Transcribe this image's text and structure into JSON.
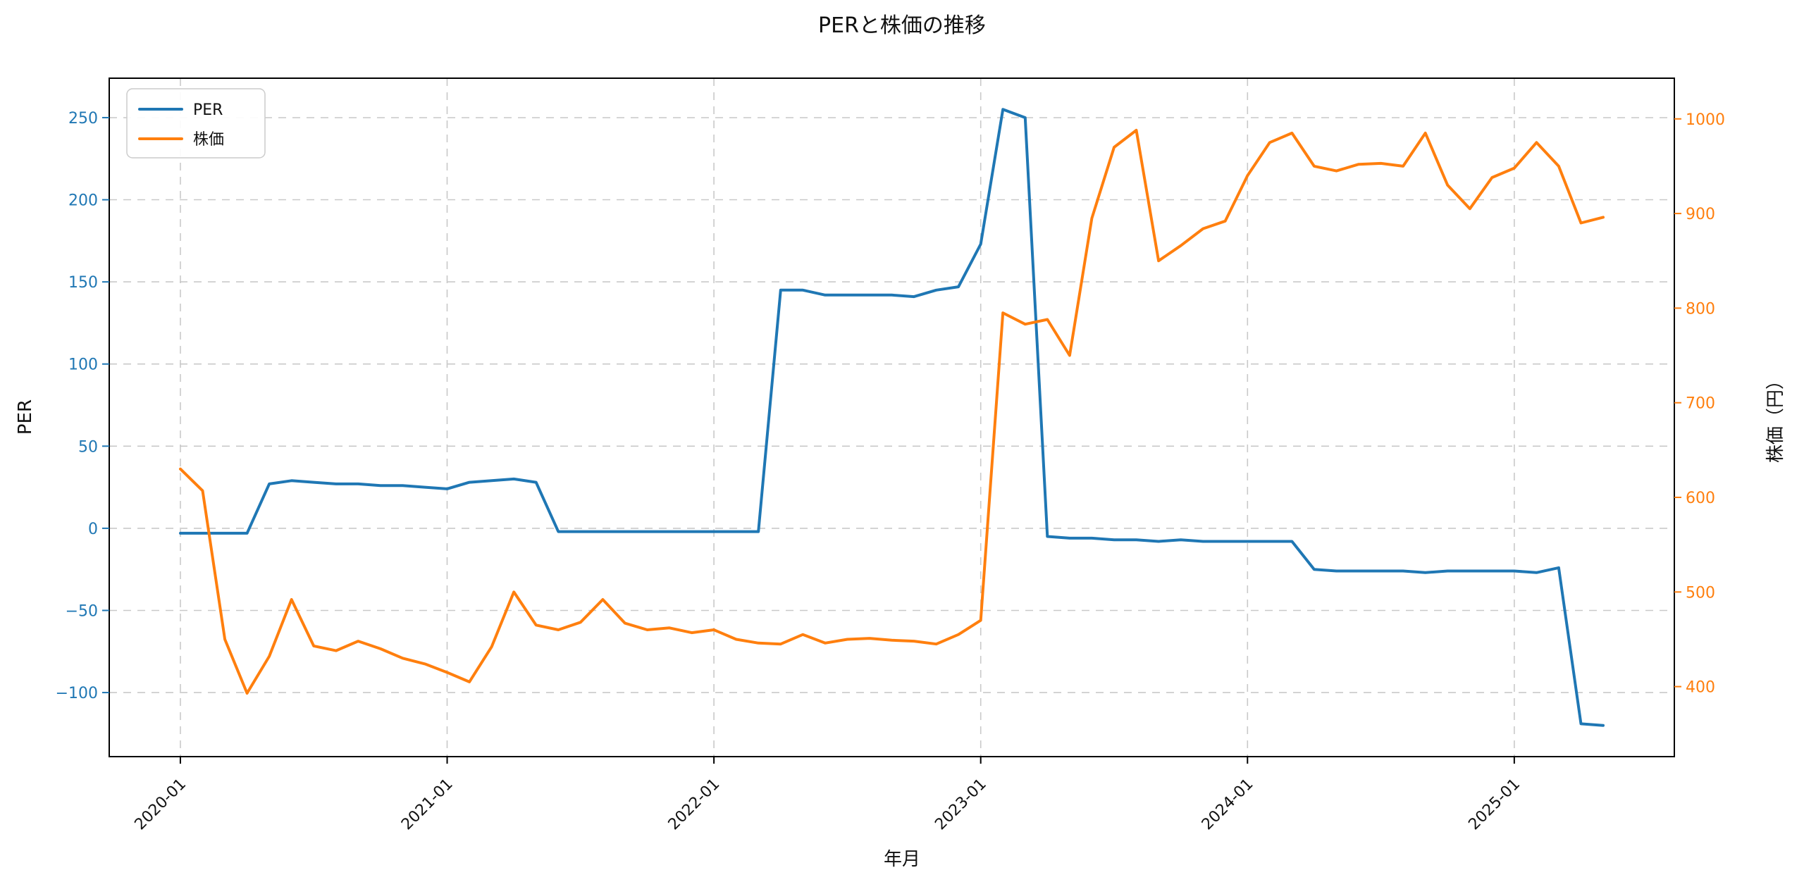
{
  "page": {
    "background": "#ffffff"
  },
  "chart_data": {
    "type": "line",
    "title": "PERと株価の推移",
    "xlabel": "年月",
    "ylabel_left": "PER",
    "ylabel_right": "株価（円）",
    "grid": {
      "on": true,
      "style": "dashed",
      "color": "#c9c9c9"
    },
    "legend": {
      "position": "upper-left",
      "entries": [
        "PER",
        "株価"
      ]
    },
    "x_categories": [
      "2020-01",
      "2020-02",
      "2020-03",
      "2020-04",
      "2020-05",
      "2020-06",
      "2020-07",
      "2020-08",
      "2020-09",
      "2020-10",
      "2020-11",
      "2020-12",
      "2021-01",
      "2021-02",
      "2021-03",
      "2021-04",
      "2021-05",
      "2021-06",
      "2021-07",
      "2021-08",
      "2021-09",
      "2021-10",
      "2021-11",
      "2021-12",
      "2022-01",
      "2022-02",
      "2022-03",
      "2022-04",
      "2022-05",
      "2022-06",
      "2022-07",
      "2022-08",
      "2022-09",
      "2022-10",
      "2022-11",
      "2022-12",
      "2023-01",
      "2023-02",
      "2023-03",
      "2023-04",
      "2023-05",
      "2023-06",
      "2023-07",
      "2023-08",
      "2023-09",
      "2023-10",
      "2023-11",
      "2023-12",
      "2024-01",
      "2024-02",
      "2024-03",
      "2024-04",
      "2024-05",
      "2024-06",
      "2024-07",
      "2024-08",
      "2024-09",
      "2024-10",
      "2024-11",
      "2024-12",
      "2025-01",
      "2025-02",
      "2025-03",
      "2025-04",
      "2025-05"
    ],
    "x_ticks": [
      {
        "index": 0,
        "label": "2020-01"
      },
      {
        "index": 12,
        "label": "2021-01"
      },
      {
        "index": 24,
        "label": "2022-01"
      },
      {
        "index": 36,
        "label": "2023-01"
      },
      {
        "index": 48,
        "label": "2024-01"
      },
      {
        "index": 60,
        "label": "2025-01"
      }
    ],
    "left_axis": {
      "ticks": [
        -100,
        -50,
        0,
        50,
        100,
        150,
        200,
        250
      ],
      "lim": [
        -139,
        274
      ],
      "color": "#1f77b4"
    },
    "right_axis": {
      "ticks": [
        400,
        500,
        600,
        700,
        800,
        900,
        1000
      ],
      "lim": [
        326,
        1043
      ],
      "color": "#ff7f0e"
    },
    "series": [
      {
        "name": "PER",
        "axis": "left",
        "color": "#1f77b4",
        "data_name": "per-series-line",
        "values": [
          -3,
          -3,
          -3,
          -3,
          27,
          29,
          28,
          27,
          27,
          26,
          26,
          25,
          24,
          28,
          29,
          30,
          28,
          -2,
          -2,
          -2,
          -2,
          -2,
          -2,
          -2,
          -2,
          -2,
          -2,
          145,
          145,
          142,
          142,
          142,
          142,
          141,
          145,
          147,
          173,
          255,
          250,
          -5,
          -6,
          -6,
          -7,
          -7,
          -8,
          -7,
          -8,
          -8,
          -8,
          -8,
          -8,
          -25,
          -26,
          -26,
          -26,
          -26,
          -27,
          -26,
          -26,
          -26,
          -26,
          -27,
          -24,
          -119,
          -120
        ]
      },
      {
        "name": "株価",
        "axis": "right",
        "color": "#ff7f0e",
        "data_name": "stock-price-series-line",
        "values": [
          630,
          607,
          450,
          393,
          432,
          492,
          443,
          438,
          448,
          440,
          430,
          424,
          415,
          405,
          442,
          500,
          465,
          460,
          468,
          492,
          467,
          460,
          462,
          457,
          460,
          450,
          446,
          445,
          455,
          446,
          450,
          451,
          449,
          448,
          445,
          455,
          470,
          795,
          783,
          788,
          750,
          895,
          970,
          988,
          850,
          866,
          884,
          892,
          940,
          975,
          985,
          950,
          945,
          952,
          953,
          950,
          985,
          930,
          905,
          938,
          948,
          975,
          950,
          890,
          896
        ]
      }
    ]
  }
}
